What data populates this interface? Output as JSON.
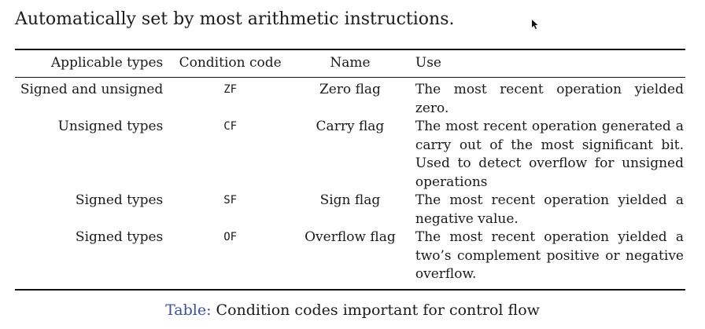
{
  "intro": "Automatically set by most arithmetic instructions.",
  "table": {
    "headers": [
      "Applicable types",
      "Condition code",
      "Name",
      "Use"
    ],
    "rows": [
      {
        "types": "Signed and unsigned",
        "code": "ZF",
        "name": "Zero flag",
        "use": "The most recent operation yielded zero."
      },
      {
        "types": "Unsigned types",
        "code": "CF",
        "name": "Carry flag",
        "use": "The most recent operation generated a carry out of the most significant bit. Used to detect overflow for unsigned operations"
      },
      {
        "types": "Signed types",
        "code": "SF",
        "name": "Sign flag",
        "use": "The most recent operation yielded a negative value."
      },
      {
        "types": "Signed types",
        "code": "OF",
        "name": "Overflow flag",
        "use": "The most recent operation yielded a two’s complement positive or negative overflow."
      }
    ]
  },
  "caption": {
    "label": "Table:",
    "text": "Condition codes important for control flow"
  },
  "colors": {
    "caption_label": "#3b4fa8"
  },
  "icons": {
    "cursor": "mouse-pointer-icon"
  }
}
